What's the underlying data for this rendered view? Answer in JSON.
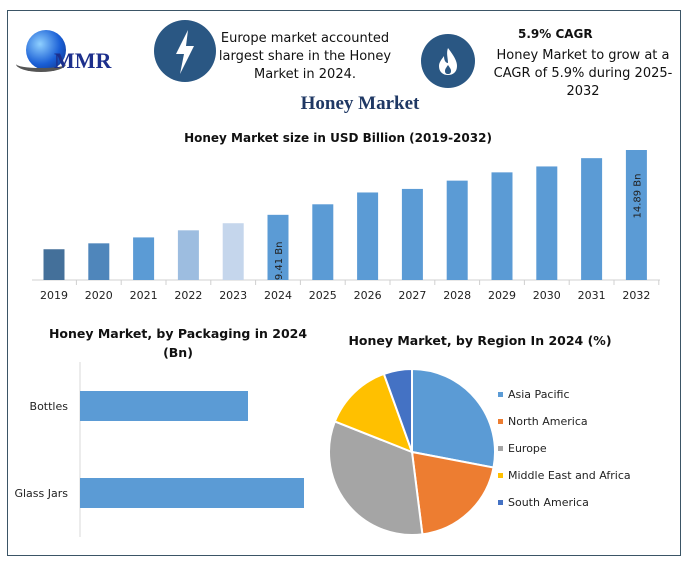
{
  "header": {
    "logo_text": "MMR",
    "icons": [
      "lightning-icon",
      "flame-icon"
    ],
    "highlight_1": [
      "Europe market accounted",
      "largest share in the Honey",
      "Market in 2024."
    ],
    "highlight_2_title": "5.9% CAGR",
    "highlight_2": [
      "Honey Market to grow at a",
      "CAGR of 5.9% during 2025-2032"
    ],
    "accent_color": "#2a5783"
  },
  "page_title": "Honey Market",
  "chart_data": [
    {
      "type": "bar",
      "title": "Honey Market size in USD Billion (2019-2032)",
      "categories": [
        "2019",
        "2020",
        "2021",
        "2022",
        "2023",
        "2024",
        "2025",
        "2026",
        "2027",
        "2028",
        "2029",
        "2030",
        "2031",
        "2032"
      ],
      "values": [
        6.5,
        7.0,
        7.5,
        8.1,
        8.7,
        9.41,
        10.3,
        11.3,
        11.6,
        12.3,
        13.0,
        13.5,
        14.2,
        14.89
      ],
      "data_labels": {
        "2024": "9.41 Bn",
        "2032": "14.89 Bn"
      },
      "colors": [
        "#44709a",
        "#4f86bb",
        "#5b9bd5",
        "#9dbde0",
        "#c5d6ec",
        "#5b9bd5",
        "#5b9bd5",
        "#5b9bd5",
        "#5b9bd5",
        "#5b9bd5",
        "#5b9bd5",
        "#5b9bd5",
        "#5b9bd5",
        "#5b9bd5"
      ],
      "ylim": [
        3.9,
        15
      ],
      "grid": false
    },
    {
      "type": "bar",
      "orientation": "horizontal",
      "title": [
        "Honey Market, by Packaging in 2024",
        "(Bn)"
      ],
      "categories": [
        "Bottles",
        "Glass Jars"
      ],
      "values": [
        0.75,
        1.0
      ],
      "color": "#5b9bd5"
    },
    {
      "type": "pie",
      "title": "Honey Market, by Region In 2024 (%)",
      "legend_position": "right",
      "slices": [
        {
          "label": "Asia Pacific",
          "value": 28,
          "color": "#5b9bd5"
        },
        {
          "label": "North America",
          "value": 20,
          "color": "#ed7d31"
        },
        {
          "label": "Europe",
          "value": 33,
          "color": "#a5a5a5"
        },
        {
          "label": "Middle East and Africa",
          "value": 13.5,
          "color": "#ffc000"
        },
        {
          "label": "South America",
          "value": 5.5,
          "color": "#4472c4"
        }
      ]
    }
  ]
}
